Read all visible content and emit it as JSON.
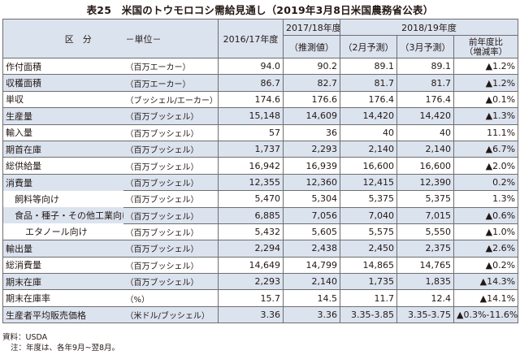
{
  "title": "表25　米国のトウモロコシ需給見通し（2019年3月8日米国農務省公表）",
  "header": {
    "category": "区　分",
    "unit": "－単位－",
    "col_2016": "2016/17年度",
    "col_2017": "2017/18年度",
    "col_2018": "2018/19年度",
    "sub_estimate": "（推測値）",
    "sub_feb": "（2月予測）",
    "sub_mar": "（3月予測）",
    "yoy": "前年度比\n（増減率）"
  },
  "rows": [
    {
      "label": "作付面積",
      "unit": "（百万エーカー）",
      "v2016": "94.0",
      "v2017": "90.2",
      "feb": "89.1",
      "mar": "89.1",
      "yoy": "▲1.2%"
    },
    {
      "label": "収穫面積",
      "unit": "（百万エーカー）",
      "v2016": "86.7",
      "v2017": "82.7",
      "feb": "81.7",
      "mar": "81.7",
      "yoy": "▲1.2%"
    },
    {
      "label": "単収",
      "unit": "（ブッシェル/エーカー）",
      "v2016": "174.6",
      "v2017": "176.6",
      "feb": "176.4",
      "mar": "176.4",
      "yoy": "▲0.1%"
    },
    {
      "label": "生産量",
      "unit": "（百万ブッシェル）",
      "v2016": "15,148",
      "v2017": "14,609",
      "feb": "14,420",
      "mar": "14,420",
      "yoy": "▲1.3%"
    },
    {
      "label": "輸入量",
      "unit": "（百万ブッシェル）",
      "v2016": "57",
      "v2017": "36",
      "feb": "40",
      "mar": "40",
      "yoy": "11.1%"
    },
    {
      "label": "期首在庫",
      "unit": "（百万ブッシェル）",
      "v2016": "1,737",
      "v2017": "2,293",
      "feb": "2,140",
      "mar": "2,140",
      "yoy": "▲6.7%"
    },
    {
      "label": "総供給量",
      "unit": "（百万ブッシェル）",
      "v2016": "16,942",
      "v2017": "16,939",
      "feb": "16,600",
      "mar": "16,600",
      "yoy": "▲2.0%"
    },
    {
      "label": "消費量",
      "unit": "（百万ブッシェル）",
      "v2016": "12,355",
      "v2017": "12,360",
      "feb": "12,415",
      "mar": "12,390",
      "yoy": "0.2%"
    },
    {
      "label": "飼料等向け",
      "unit": "（百万ブッシェル）",
      "v2016": "5,470",
      "v2017": "5,304",
      "feb": "5,375",
      "mar": "5,375",
      "yoy": "1.3%"
    },
    {
      "label": "食品・種子・その他工業向け",
      "unit": "（百万ブッシェル）",
      "v2016": "6,885",
      "v2017": "7,056",
      "feb": "7,040",
      "mar": "7,015",
      "yoy": "▲0.6%"
    },
    {
      "label": "エタノール向け",
      "unit": "（百万ブッシェル）",
      "v2016": "5,432",
      "v2017": "5,605",
      "feb": "5,575",
      "mar": "5,550",
      "yoy": "▲1.0%"
    },
    {
      "label": "輸出量",
      "unit": "（百万ブッシェル）",
      "v2016": "2,294",
      "v2017": "2,438",
      "feb": "2,450",
      "mar": "2,375",
      "yoy": "▲2.6%"
    },
    {
      "label": "総消費量",
      "unit": "（百万ブッシェル）",
      "v2016": "14,649",
      "v2017": "14,799",
      "feb": "14,865",
      "mar": "14,765",
      "yoy": "▲0.2%"
    },
    {
      "label": "期末在庫",
      "unit": "（百万ブッシェル）",
      "v2016": "2,293",
      "v2017": "2,140",
      "feb": "1,735",
      "mar": "1,835",
      "yoy": "▲14.3%"
    },
    {
      "label": "期末在庫率",
      "unit": "（%）",
      "v2016": "15.7",
      "v2017": "14.5",
      "feb": "11.7",
      "mar": "12.4",
      "yoy": "▲14.1%"
    },
    {
      "label": "生産者平均販売価格",
      "unit": "（米ドル/ブッシェル）",
      "v2016": "3.36",
      "v2017": "3.36",
      "feb": "3.35-3.85",
      "mar": "3.35-3.75",
      "yoy": "▲0.3%-11.6%"
    }
  ],
  "notes": {
    "source": "資料：USDA",
    "note": "注：年度は、各年9月~翌8月。"
  }
}
